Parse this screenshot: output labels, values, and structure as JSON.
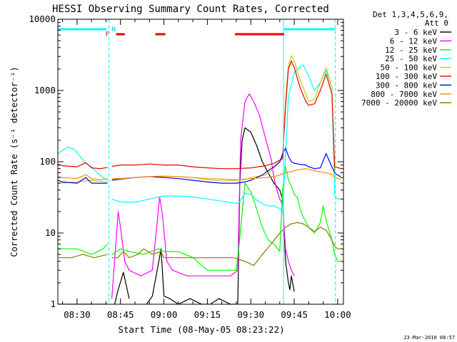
{
  "chart_data": {
    "type": "line",
    "title": "HESSI Observing Summary Count Rates, Corrected",
    "xlabel": "Start Time (08-May-05 08:23:22)",
    "ylabel": "Corrected Count Rate (s⁻¹ detector⁻¹)",
    "x_unit": "minutes",
    "xlim": [
      503.37,
      602
    ],
    "ylim": [
      1,
      10000
    ],
    "y_scale": "log",
    "x_ticks": [
      "08:30",
      "08:45",
      "09:00",
      "09:15",
      "09:30",
      "09:45",
      "10:00"
    ],
    "x_tick_values": [
      510,
      525,
      540,
      555,
      570,
      585,
      600
    ],
    "y_ticks": [
      "1",
      "10",
      "100",
      "1000",
      "10000"
    ],
    "y_tick_values": [
      1,
      10,
      100,
      1000,
      10000
    ],
    "legend_header": [
      "Det 1,3,4,5,6,9,",
      "Att 0"
    ],
    "legend_placement": "top-right outside",
    "timestamp": "23-Mar-2010 08:57",
    "flags": {
      "N_label": "N",
      "F_label": "F",
      "night_bars": [
        [
          503.37,
          520.2
        ],
        [
          581.3,
          599.2
        ]
      ],
      "flare_bars": [
        [
          523.5,
          526.5
        ],
        [
          537.0,
          540.5
        ],
        [
          564.5,
          581.5
        ]
      ],
      "verticals_solid": [
        503.37,
        581.3
      ],
      "verticals_dashed": [
        521.0,
        599.2
      ]
    },
    "series": [
      {
        "name": "3 - 6 keV",
        "color": "#000000",
        "x": [
          503.4,
          515,
          519,
          520.6,
          521,
          523,
          524,
          526,
          528,
          532,
          534,
          536,
          538,
          539,
          540,
          542,
          545,
          549,
          553,
          556,
          559,
          563,
          565.5,
          566.2,
          567,
          568,
          570,
          572,
          574,
          576,
          578,
          580,
          581,
          582,
          583,
          583.5,
          584,
          585
        ],
        "y": [
          1,
          1,
          1,
          1,
          null,
          1,
          1.5,
          2.8,
          1.2,
          null,
          1,
          1.3,
          3.5,
          6,
          1.3,
          1.2,
          1,
          1.2,
          1,
          1,
          1.2,
          1,
          1,
          50,
          200,
          300,
          260,
          170,
          100,
          70,
          50,
          40,
          30,
          4,
          2,
          1.6,
          2.5,
          1.5
        ]
      },
      {
        "name": "6 - 12 keV",
        "color": "#ff00ff",
        "x": [
          503.4,
          515,
          518,
          520,
          520.6,
          521,
          522,
          523.5,
          524.2,
          525,
          526.5,
          528,
          532,
          536,
          537.5,
          538.5,
          539.5,
          541,
          543,
          548,
          553,
          558,
          563,
          565.5,
          566.5,
          568,
          569.5,
          571,
          573,
          575,
          577,
          578,
          579,
          580,
          581,
          582,
          583,
          584,
          585
        ],
        "y": [
          1,
          1,
          1,
          1,
          1,
          null,
          1.2,
          8,
          20,
          12,
          4,
          3,
          2.5,
          3,
          12,
          32,
          18,
          4,
          3,
          2.5,
          2.5,
          2.5,
          2.5,
          3,
          200,
          700,
          900,
          700,
          450,
          220,
          110,
          60,
          40,
          30,
          25,
          6,
          4,
          3,
          2.5
        ]
      },
      {
        "name": "12 - 25 keV",
        "color": "#00ff00",
        "x": [
          503.4,
          510,
          515,
          519,
          520.5,
          521,
          522,
          525,
          528,
          533,
          538,
          540,
          545,
          550,
          555,
          560,
          565,
          566,
          568,
          570,
          572,
          574,
          576,
          578,
          580,
          581,
          582,
          583,
          584,
          585,
          586,
          587,
          588,
          590,
          592,
          594,
          595,
          596,
          598,
          599,
          600,
          601
        ],
        "y": [
          6,
          6,
          5,
          6,
          7,
          null,
          5,
          6,
          5.5,
          5,
          6,
          5.5,
          5.5,
          4.5,
          3,
          3,
          3,
          7,
          50,
          38,
          22,
          12,
          8,
          7,
          5.5,
          40,
          85,
          55,
          45,
          35,
          32,
          22,
          17,
          12,
          10,
          14,
          24,
          15,
          8,
          5,
          4,
          4
        ]
      },
      {
        "name": "25 - 50 keV",
        "color": "#00ffff",
        "x": [
          503.4,
          505,
          507,
          509,
          511,
          513,
          515,
          517,
          519,
          520.5,
          521,
          522,
          524,
          526,
          530,
          535,
          540,
          545,
          550,
          555,
          560,
          565,
          566,
          568,
          570,
          572,
          574,
          576,
          578,
          580,
          581,
          583,
          585,
          588,
          590,
          592,
          594,
          596,
          598,
          599,
          600,
          601
        ],
        "y": [
          130,
          145,
          160,
          150,
          120,
          95,
          85,
          70,
          60,
          55,
          null,
          30,
          28,
          27,
          27,
          30,
          33,
          33,
          32,
          30,
          28,
          26,
          27,
          36,
          35,
          29,
          26,
          24,
          24,
          22,
          20,
          800,
          1800,
          2300,
          1600,
          1000,
          1300,
          1900,
          1100,
          33,
          30,
          30
        ]
      },
      {
        "name": "50 - 100 keV",
        "color": "#cccc00",
        "x": [
          503.4,
          510,
          515,
          520.5,
          521,
          522,
          525,
          530,
          535,
          540,
          545,
          550,
          555,
          560,
          565,
          568,
          570,
          573,
          575,
          577,
          579,
          580,
          581,
          582,
          583,
          584,
          585,
          587,
          589,
          590,
          592,
          594,
          596,
          598,
          599,
          600,
          601
        ],
        "y": [
          50,
          52,
          55,
          52,
          null,
          57,
          58,
          60,
          62,
          62,
          62,
          60,
          56,
          54,
          55,
          56,
          60,
          63,
          65,
          75,
          90,
          100,
          120,
          700,
          2300,
          3100,
          2600,
          1400,
          900,
          700,
          750,
          1300,
          2100,
          1100,
          70,
          65,
          60
        ]
      },
      {
        "name": "100 - 300 keV",
        "color": "#ee0000",
        "x": [
          503.4,
          505,
          510,
          513,
          515,
          518,
          520.5,
          521,
          522,
          525,
          530,
          535,
          540,
          545,
          550,
          555,
          560,
          565,
          570,
          575,
          578,
          580,
          581,
          582,
          583,
          584,
          585,
          587,
          589,
          590,
          592,
          594,
          596,
          598,
          599,
          600,
          601
        ],
        "y": [
          92,
          88,
          85,
          97,
          82,
          80,
          83,
          null,
          86,
          90,
          90,
          93,
          90,
          90,
          85,
          82,
          80,
          80,
          82,
          88,
          95,
          105,
          110,
          600,
          2000,
          2600,
          2100,
          1100,
          700,
          620,
          650,
          1000,
          1700,
          900,
          85,
          83,
          80
        ]
      },
      {
        "name": "300 - 800 keV",
        "color": "#0000ff",
        "x": [
          503.4,
          505,
          510,
          513,
          515,
          518,
          520.5,
          521,
          522,
          525,
          530,
          535,
          540,
          545,
          550,
          555,
          560,
          565,
          568,
          570,
          572,
          574,
          576,
          578,
          580,
          581,
          582,
          583,
          584,
          585,
          587,
          589,
          590,
          592,
          594,
          596,
          598,
          599,
          600,
          601
        ],
        "y": [
          55,
          52,
          50,
          60,
          50,
          50,
          50,
          null,
          55,
          57,
          60,
          62,
          60,
          58,
          55,
          52,
          50,
          50,
          52,
          55,
          60,
          65,
          75,
          85,
          100,
          130,
          155,
          120,
          100,
          95,
          92,
          90,
          85,
          80,
          82,
          130,
          85,
          70,
          65,
          62
        ]
      },
      {
        "name": "800 - 7000 keV",
        "color": "#ff8800",
        "x": [
          503.4,
          505,
          510,
          513,
          515,
          518,
          520.5,
          521,
          522,
          525,
          530,
          535,
          540,
          545,
          550,
          555,
          560,
          565,
          570,
          575,
          578,
          580,
          581,
          582,
          583,
          584,
          585,
          587,
          589,
          590,
          592,
          594,
          596,
          598,
          599,
          600,
          601
        ],
        "y": [
          62,
          60,
          58,
          66,
          58,
          56,
          58,
          null,
          58,
          58,
          60,
          62,
          63,
          62,
          60,
          58,
          57,
          56,
          58,
          60,
          62,
          65,
          68,
          70,
          72,
          72,
          75,
          78,
          80,
          78,
          75,
          72,
          70,
          66,
          60,
          58,
          56
        ]
      },
      {
        "name": "7000 - 20000 keV",
        "color": "#8b7b00",
        "x": [
          503.4,
          508,
          512,
          516,
          520.5,
          521,
          522,
          524,
          526,
          528,
          531,
          533,
          536,
          539,
          540,
          544,
          548,
          552,
          556,
          560,
          564,
          568,
          571,
          574,
          577,
          580,
          582,
          584,
          586,
          588,
          590,
          592,
          594,
          596,
          598,
          599,
          600,
          601
        ],
        "y": [
          4.5,
          4.5,
          5,
          4.5,
          5,
          null,
          4.5,
          4.5,
          5.5,
          4.5,
          5,
          6,
          5,
          5.5,
          4.5,
          4.5,
          4.5,
          4.5,
          4.5,
          4.5,
          4.5,
          4,
          3.5,
          5,
          7,
          10,
          12,
          13.5,
          14,
          13.5,
          12,
          10.5,
          12,
          11,
          8,
          6.5,
          6,
          6
        ]
      }
    ]
  }
}
